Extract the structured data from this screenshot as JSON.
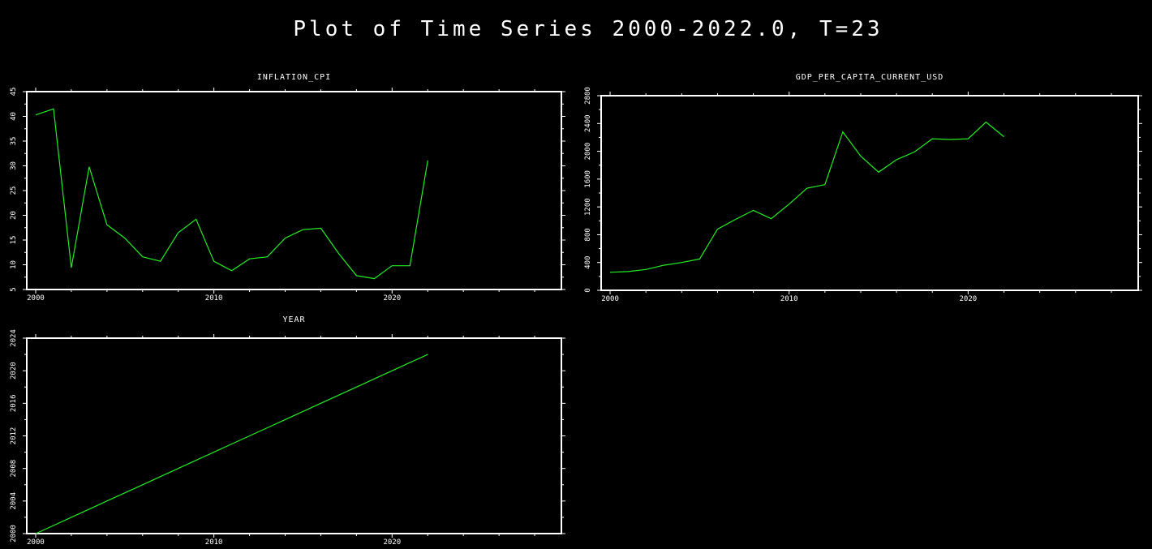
{
  "title": "Plot of Time Series 2000-2022.0, T=23",
  "colors": {
    "background": "#000000",
    "frame": "#ffffff",
    "series": "#22ee22",
    "text": "#ffffff"
  },
  "chart_data": [
    {
      "type": "line",
      "title": "INFLATION_CPI",
      "x": [
        2000,
        2001,
        2002,
        2003,
        2004,
        2005,
        2006,
        2007,
        2008,
        2009,
        2010,
        2011,
        2012,
        2013,
        2014,
        2015,
        2016,
        2017,
        2018,
        2019,
        2020,
        2021,
        2022
      ],
      "values": [
        40.3,
        41.5,
        9.4,
        29.8,
        18.1,
        15.4,
        11.6,
        10.7,
        16.5,
        19.2,
        10.7,
        8.8,
        11.2,
        11.6,
        15.4,
        17.1,
        17.4,
        12.3,
        7.8,
        7.2,
        9.8,
        9.8,
        31.1
      ],
      "xlim": [
        1999.5,
        2029.5
      ],
      "ylim": [
        5,
        45
      ],
      "xticks": [
        2000,
        2010,
        2020
      ],
      "yticks": [
        5,
        10,
        15,
        20,
        25,
        30,
        35,
        40,
        45
      ],
      "ytick_labels": [
        "5",
        "10",
        "15",
        "20",
        "25",
        "30",
        "35",
        "40",
        "45"
      ],
      "xtick_labels": [
        "2000",
        "2010",
        "2020"
      ]
    },
    {
      "type": "line",
      "title": "GDP_PER_CAPITA_CURRENT_USD",
      "x": [
        2000,
        2001,
        2002,
        2003,
        2004,
        2005,
        2006,
        2007,
        2008,
        2009,
        2010,
        2011,
        2012,
        2013,
        2014,
        2015,
        2016,
        2017,
        2018,
        2019,
        2020,
        2021,
        2022
      ],
      "values": [
        260,
        270,
        300,
        360,
        400,
        450,
        880,
        1020,
        1150,
        1030,
        1240,
        1470,
        1520,
        2280,
        1930,
        1700,
        1880,
        1990,
        2180,
        2170,
        2180,
        2420,
        2210
      ],
      "xlim": [
        1999.5,
        2029.5
      ],
      "ylim": [
        0,
        2800
      ],
      "xticks": [
        2000,
        2010,
        2020
      ],
      "yticks": [
        0,
        400,
        800,
        1200,
        1600,
        2000,
        2400,
        2800
      ],
      "ytick_labels": [
        "0",
        "400",
        "800",
        "1200",
        "1600",
        "2000",
        "2400",
        "2800"
      ],
      "xtick_labels": [
        "2000",
        "2010",
        "2020"
      ]
    },
    {
      "type": "line",
      "title": "YEAR",
      "x": [
        2000,
        2001,
        2002,
        2003,
        2004,
        2005,
        2006,
        2007,
        2008,
        2009,
        2010,
        2011,
        2012,
        2013,
        2014,
        2015,
        2016,
        2017,
        2018,
        2019,
        2020,
        2021,
        2022
      ],
      "values": [
        2000,
        2001,
        2002,
        2003,
        2004,
        2005,
        2006,
        2007,
        2008,
        2009,
        2010,
        2011,
        2012,
        2013,
        2014,
        2015,
        2016,
        2017,
        2018,
        2019,
        2020,
        2021,
        2022
      ],
      "xlim": [
        1999.5,
        2029.5
      ],
      "ylim": [
        2000,
        2024
      ],
      "xticks": [
        2000,
        2010,
        2020
      ],
      "yticks": [
        2000,
        2004,
        2008,
        2012,
        2016,
        2020,
        2024
      ],
      "ytick_labels": [
        "2000",
        "2004",
        "2008",
        "2012",
        "2016",
        "2020",
        "2024"
      ],
      "xtick_labels": [
        "2000",
        "2010",
        "2020"
      ]
    }
  ]
}
